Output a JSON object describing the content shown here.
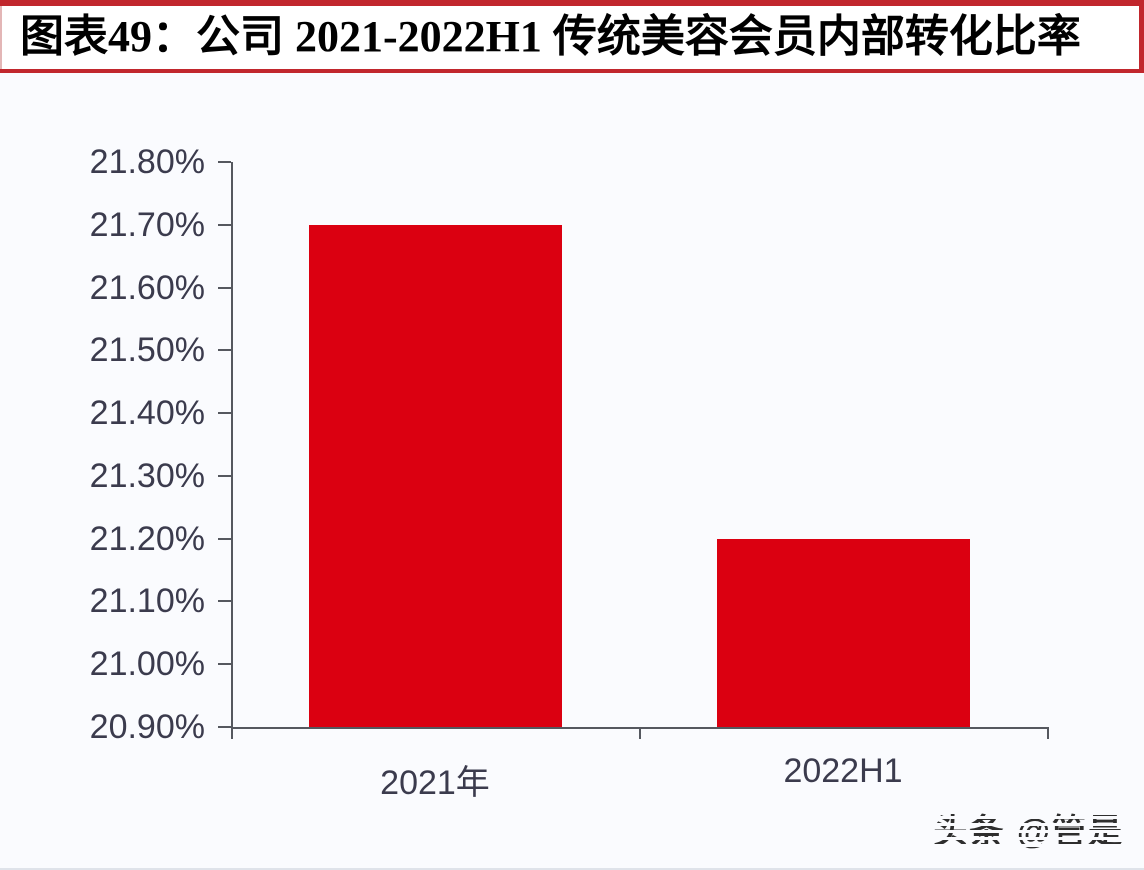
{
  "figure": {
    "title": "图表49：公司 2021-2022H1 传统美容会员内部转化比率",
    "watermark": "头条 @管是"
  },
  "colors": {
    "accent_red": "#c1272d",
    "bar_red": "#db0011",
    "axis": "#55585f",
    "tick_label": "#3b3b4d",
    "chart_background": "#fafbfe",
    "title_background": "#ffffff",
    "title_text": "#000000"
  },
  "chart_data": {
    "type": "bar",
    "title": "公司 2021-2022H1 传统美容会员内部转化比率",
    "categories": [
      "2021年",
      "2022H1"
    ],
    "values": [
      21.7,
      21.2
    ],
    "value_format": "percent",
    "ylim": [
      20.9,
      21.8
    ],
    "ytick_step": 0.1,
    "ytick_labels": [
      "21.80%",
      "21.70%",
      "21.60%",
      "21.50%",
      "21.40%",
      "21.30%",
      "21.20%",
      "21.10%",
      "21.00%",
      "20.90%"
    ],
    "xlabel": "",
    "ylabel": "",
    "grid": false,
    "legend_position": "none",
    "bar_color": "#db0011"
  }
}
